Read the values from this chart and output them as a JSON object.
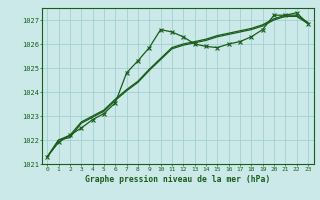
{
  "xlabel": "Graphe pression niveau de la mer (hPa)",
  "ylim": [
    1021,
    1027.5
  ],
  "xlim": [
    -0.5,
    23.5
  ],
  "yticks": [
    1021,
    1022,
    1023,
    1024,
    1025,
    1026,
    1027
  ],
  "xticks": [
    0,
    1,
    2,
    3,
    4,
    5,
    6,
    7,
    8,
    9,
    10,
    11,
    12,
    13,
    14,
    15,
    16,
    17,
    18,
    19,
    20,
    21,
    22,
    23
  ],
  "background_color": "#cce9e9",
  "grid_color": "#99cccc",
  "line_color": "#1a5c1a",
  "series1": [
    1021.3,
    1021.9,
    1022.2,
    1022.5,
    1022.85,
    1023.1,
    1023.55,
    1024.8,
    1025.3,
    1025.85,
    1026.6,
    1026.5,
    1026.3,
    1026.0,
    1025.9,
    1025.85,
    1026.0,
    1026.1,
    1026.3,
    1026.6,
    1027.2,
    1027.2,
    1027.3,
    1026.85
  ],
  "series2": [
    1021.3,
    1022.0,
    1022.2,
    1022.75,
    1023.0,
    1023.25,
    1023.7,
    1024.1,
    1024.45,
    1024.95,
    1025.4,
    1025.85,
    1026.0,
    1026.1,
    1026.2,
    1026.35,
    1026.45,
    1026.55,
    1026.65,
    1026.8,
    1027.05,
    1027.2,
    1027.2,
    1026.9
  ],
  "series3": [
    1021.3,
    1022.0,
    1022.1,
    1022.7,
    1022.95,
    1023.2,
    1023.65,
    1024.05,
    1024.4,
    1024.9,
    1025.35,
    1025.8,
    1025.95,
    1026.05,
    1026.15,
    1026.3,
    1026.4,
    1026.5,
    1026.6,
    1026.75,
    1027.0,
    1027.15,
    1027.15,
    1026.85
  ]
}
